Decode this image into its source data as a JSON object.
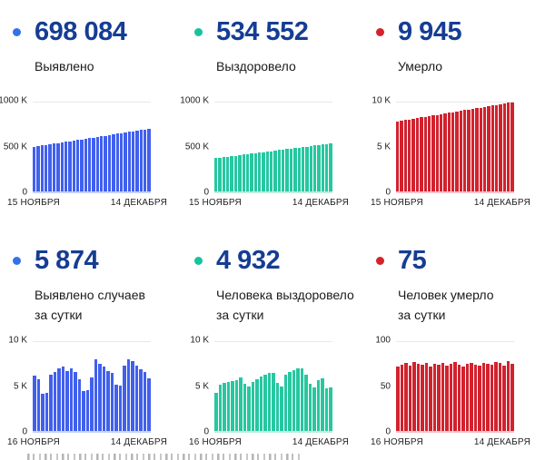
{
  "colors": {
    "stat_value": "#153d94",
    "axis_text": "#1f1f1f",
    "gridline": "#e8e8e8",
    "blue": "#4160ee",
    "teal": "#27c7a0",
    "red": "#d2222e"
  },
  "cards": [
    {
      "value": "698 084",
      "label_lines": [
        "Выявлено"
      ],
      "dot_color": "#3572e8"
    },
    {
      "value": "534 552",
      "label_lines": [
        "Выздоровело"
      ],
      "dot_color": "#17c29c"
    },
    {
      "value": "9 945",
      "label_lines": [
        "Умерло"
      ],
      "dot_color": "#d4232b"
    },
    {
      "value": "5 874",
      "label_lines": [
        "Выявлено случаев",
        "за сутки"
      ],
      "dot_color": "#3572e8"
    },
    {
      "value": "4 932",
      "label_lines": [
        "Человека выздоровело",
        "за сутки"
      ],
      "dot_color": "#17c29c"
    },
    {
      "value": "75",
      "label_lines": [
        "Человек умерло",
        "за сутки"
      ],
      "dot_color": "#d4232b"
    }
  ],
  "chart_data": [
    {
      "type": "bar",
      "title": "Выявлено",
      "value_unit": "thousands",
      "color": "#4160ee",
      "baseline_color": "#c5d1f8",
      "ylim": [
        0,
        1000
      ],
      "yticks": [
        {
          "value": 0,
          "label": "0"
        },
        {
          "value": 500,
          "label": "500 K"
        },
        {
          "value": 1000,
          "label": "1000 K"
        }
      ],
      "x_labels": [
        "15 НОЯБРЯ",
        "14 ДЕКАБРЯ"
      ],
      "values": [
        499,
        505,
        512,
        518,
        525,
        531,
        538,
        545,
        551,
        558,
        565,
        572,
        579,
        586,
        593,
        600,
        607,
        614,
        621,
        628,
        635,
        642,
        649,
        656,
        663,
        670,
        677,
        684,
        691,
        698
      ]
    },
    {
      "type": "bar",
      "title": "Выздоровело",
      "value_unit": "thousands",
      "color": "#27c7a0",
      "baseline_color": "#bfecdf",
      "ylim": [
        0,
        1000
      ],
      "yticks": [
        {
          "value": 0,
          "label": "0"
        },
        {
          "value": 500,
          "label": "500 K"
        },
        {
          "value": 1000,
          "label": "1000 K"
        }
      ],
      "x_labels": [
        "15 НОЯБРЯ",
        "14 ДЕКАБРЯ"
      ],
      "values": [
        370,
        376,
        381,
        387,
        393,
        398,
        404,
        410,
        415,
        421,
        427,
        432,
        438,
        444,
        449,
        455,
        461,
        466,
        472,
        478,
        483,
        489,
        495,
        500,
        506,
        512,
        517,
        523,
        529,
        535
      ]
    },
    {
      "type": "bar",
      "title": "Умерло",
      "value_unit": "thousands",
      "color": "#d2222e",
      "baseline_color": "#f6c3c7",
      "ylim": [
        0,
        10
      ],
      "yticks": [
        {
          "value": 0,
          "label": "0"
        },
        {
          "value": 5,
          "label": "5 K"
        },
        {
          "value": 10,
          "label": "10 K"
        }
      ],
      "x_labels": [
        "15 НОЯБРЯ",
        "14 ДЕКАБРЯ"
      ],
      "values": [
        7.8,
        7.87,
        7.95,
        8.02,
        8.09,
        8.17,
        8.24,
        8.31,
        8.39,
        8.46,
        8.53,
        8.61,
        8.68,
        8.75,
        8.83,
        8.9,
        8.97,
        9.05,
        9.12,
        9.19,
        9.27,
        9.34,
        9.41,
        9.49,
        9.56,
        9.63,
        9.71,
        9.78,
        9.86,
        9.95
      ]
    },
    {
      "type": "bar",
      "title": "Выявлено случаев за сутки",
      "value_unit": "thousands",
      "color": "#4160ee",
      "baseline_color": "#c5d1f8",
      "ylim": [
        0,
        10
      ],
      "yticks": [
        {
          "value": 0,
          "label": "0"
        },
        {
          "value": 5,
          "label": "5 K"
        },
        {
          "value": 10,
          "label": "10 K"
        }
      ],
      "x_labels": [
        "16 НОЯБРЯ",
        "14 ДЕКАБРЯ"
      ],
      "values": [
        6.2,
        5.8,
        4.1,
        4.2,
        6.3,
        6.6,
        7.0,
        7.2,
        6.7,
        7.0,
        6.6,
        5.8,
        4.4,
        4.5,
        6.0,
        8.0,
        7.5,
        7.2,
        6.7,
        6.5,
        5.2,
        5.1,
        7.3,
        8.0,
        7.8,
        7.3,
        6.9,
        6.6,
        5.9
      ]
    },
    {
      "type": "bar",
      "title": "Человека выздоровело за сутки",
      "value_unit": "thousands",
      "color": "#27c7a0",
      "baseline_color": "#bfecdf",
      "ylim": [
        0,
        10
      ],
      "yticks": [
        {
          "value": 0,
          "label": "0"
        },
        {
          "value": 5,
          "label": "5 K"
        },
        {
          "value": 10,
          "label": "10 K"
        }
      ],
      "x_labels": [
        "16 НОЯБРЯ",
        "14 ДЕКАБРЯ"
      ],
      "values": [
        4.2,
        5.2,
        5.4,
        5.5,
        5.6,
        5.7,
        6.0,
        5.3,
        5.0,
        5.5,
        5.8,
        6.1,
        6.3,
        6.5,
        6.5,
        5.4,
        5.0,
        6.3,
        6.6,
        6.8,
        7.0,
        7.0,
        6.3,
        5.3,
        4.8,
        5.7,
        5.9,
        4.7,
        4.9
      ]
    },
    {
      "type": "bar",
      "title": "Человек умерло за сутки",
      "value_unit": "",
      "color": "#d2222e",
      "baseline_color": "#f6c3c7",
      "ylim": [
        0,
        100
      ],
      "yticks": [
        {
          "value": 0,
          "label": "0"
        },
        {
          "value": 50,
          "label": "50"
        },
        {
          "value": 100,
          "label": "100"
        }
      ],
      "x_labels": [
        "16 НОЯБРЯ",
        "14 ДЕКАБРЯ"
      ],
      "values": [
        72,
        74,
        76,
        73,
        77,
        75,
        74,
        76,
        72,
        75,
        74,
        76,
        73,
        75,
        77,
        74,
        72,
        75,
        76,
        74,
        73,
        76,
        75,
        74,
        77,
        76,
        73,
        78,
        75
      ]
    }
  ]
}
